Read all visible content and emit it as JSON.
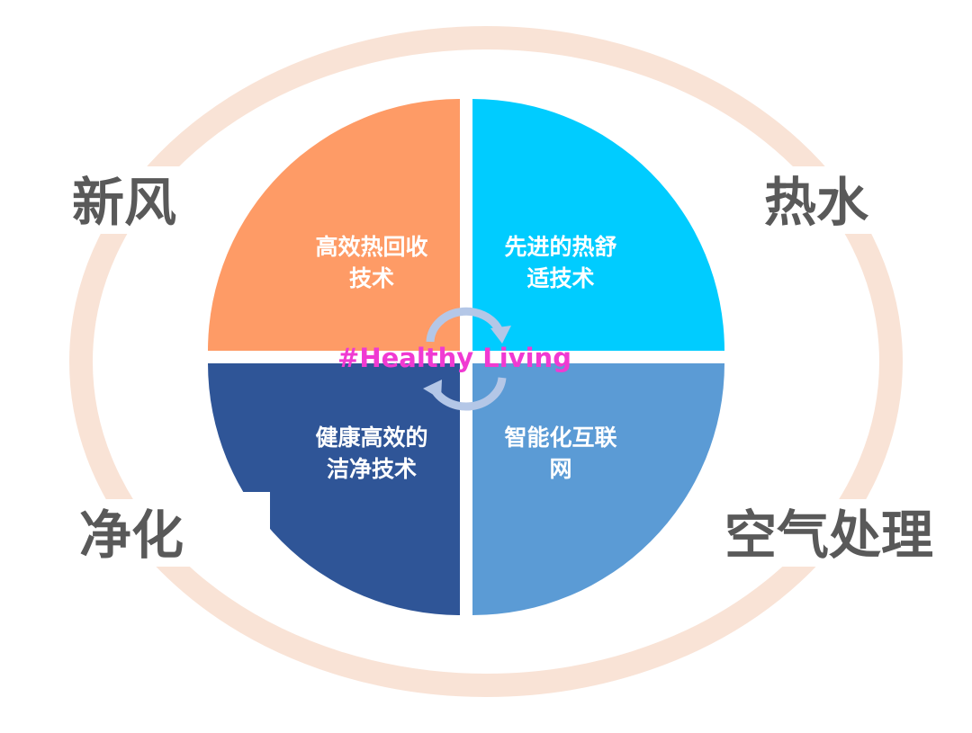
{
  "outer_labels": {
    "top_left": "新风",
    "top_right": "热水",
    "bottom_left": "净化",
    "bottom_right": "空气处理"
  },
  "quadrants": {
    "top_left": {
      "line1": "高效热回收",
      "line2": "技术",
      "color": "#fe9b66"
    },
    "top_right": {
      "line1": "先进的热舒",
      "line2": "适技术",
      "color": "#00ccff"
    },
    "bottom_left": {
      "line1": "健康高效的",
      "line2": "洁净技术",
      "color": "#2f5597"
    },
    "bottom_right": {
      "line1": "智能化互联",
      "line2": "网",
      "color": "#5b9bd5"
    }
  },
  "center_tag": "#Healthy Living",
  "colors": {
    "ring": "#f9e3d6",
    "cycle_arrows": "#b4c7e7",
    "tag": "#f03ad2"
  }
}
